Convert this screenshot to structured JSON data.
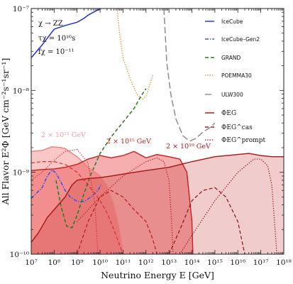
{
  "chart_data": {
    "type": "line",
    "xlabel": "Neutrino Energy E [GeV]",
    "ylabel": "All Flavor E²Φ [GeV cm⁻²s⁻¹sr⁻¹]",
    "x_scale": "log",
    "y_scale": "log",
    "xlim": [
      10000000.0,
      1e+18
    ],
    "ylim": [
      1e-10,
      1e-07
    ],
    "x_tick_labels": [
      "10⁷",
      "10⁸",
      "10⁹",
      "10¹⁰",
      "10¹¹",
      "10¹²",
      "10¹³",
      "10¹⁴",
      "10¹⁵",
      "10¹⁶",
      "10¹⁷",
      "10¹⁸"
    ],
    "y_tick_labels": [
      "10⁻¹⁰",
      "10⁻⁹",
      "10⁻⁸",
      "10⁻⁷"
    ],
    "parameters": [
      "χ → ZZ",
      "τχ = 10¹⁶s",
      "fχ = 10⁻¹¹"
    ],
    "annotations": [
      {
        "text": "2 × 10¹¹ GeV",
        "color": "#f4a0a0"
      },
      {
        "text": "2 × 10¹⁵ GeV",
        "color": "#cc1f1f"
      },
      {
        "text": "2 × 10¹⁹ GeV",
        "color": "#b01818"
      }
    ],
    "legend": [
      {
        "label": "IceCube",
        "color": "#1f2fd6",
        "style": "solid"
      },
      {
        "label": "IceCube–Gen2",
        "color": "#3b4ee8",
        "style": "dashdot"
      },
      {
        "label": "GRAND",
        "color": "#1e7d1e",
        "style": "dashed"
      },
      {
        "label": "POEMMA30",
        "color": "#e6962a",
        "style": "dotted"
      },
      {
        "label": "ULW300",
        "color": "#8c8c8c",
        "style": "longdash"
      },
      {
        "label": "ΦEG",
        "color": "#d42020",
        "style": "solid"
      },
      {
        "label": "ΦEG^cas",
        "color": "#c01818",
        "style": "dashed"
      },
      {
        "label": "ΦEG^prompt",
        "color": "#c01818",
        "style": "dotted"
      }
    ],
    "series": [
      {
        "name": "IceCube",
        "x": [
          10000000.0,
          30000000.0,
          100000000.0,
          300000000.0,
          1000000000.0,
          2000000000.0,
          3000000000.0,
          5000000000.0,
          8000000000.0,
          11000000000.0
        ],
        "y": [
          2.5e-08,
          3.6e-08,
          5.6e-08,
          6.2e-08,
          6.8e-08,
          7.6e-08,
          8.3e-08,
          9e-08,
          9.6e-08,
          1e-07
        ]
      },
      {
        "name": "IceCube–Gen2",
        "x": [
          10000000.0,
          30000000.0,
          50000000.0,
          80000000.0,
          120000000.0,
          200000000.0,
          300000000.0,
          500000000.0,
          1000000000.0,
          2000000000.0,
          4000000000.0,
          8000000000.0,
          11000000000.0
        ],
        "y": [
          4.8e-10,
          6.5e-10,
          9e-10,
          1.07e-09,
          9.8e-10,
          7.5e-10,
          6e-10,
          5e-10,
          4.4e-10,
          4.4e-10,
          5e-10,
          6e-10,
          7e-10
        ]
      },
      {
        "name": "GRAND",
        "x": [
          120000000.0,
          200000000.0,
          350000000.0,
          600000000.0,
          1000000000.0,
          2000000000.0,
          4000000000.0,
          10000000000.0,
          30000000000.0,
          100000000000.0,
          300000000000.0,
          600000000000.0,
          1000000000000.0
        ],
        "y": [
          8e-10,
          3.8e-10,
          2.2e-10,
          2.1e-10,
          3e-10,
          5.5e-10,
          9.5e-10,
          1.7e-09,
          2.7e-09,
          4.1e-09,
          6e-09,
          8.5e-09,
          1.05e-08
        ]
      },
      {
        "name": "POEMMA30",
        "x": [
          55000000000.0,
          70000000000.0,
          100000000000.0,
          200000000000.0,
          400000000000.0,
          700000000000.0,
          1000000000000.0,
          1500000000000.0,
          2000000000000.0
        ],
        "y": [
          1e-07,
          5e-08,
          2.5e-08,
          1.4e-08,
          9e-09,
          7.8e-09,
          8.5e-09,
          1.2e-08,
          1.55e-08
        ]
      },
      {
        "name": "ULW300",
        "x": [
          6000000000000.0,
          8000000000000.0,
          12000000000000.0,
          20000000000000.0,
          40000000000000.0,
          80000000000000.0,
          150000000000000.0,
          300000000000000.0,
          600000000000000.0,
          1000000000000000.0
        ],
        "y": [
          1e-07,
          2.2e-08,
          9e-09,
          4.5e-09,
          2.8e-09,
          2.4e-09,
          2.6e-09,
          3.1e-09,
          3.5e-09,
          4e-09
        ]
      },
      {
        "name": "ΦEG (2 × 10¹¹ GeV)",
        "x": [
          10000000.0,
          30000000.0,
          80000000.0,
          200000000.0,
          300000000.0,
          600000000.0,
          1000000000.0,
          3000000000.0,
          10000000000.0,
          20000000000.0,
          40000000000.0,
          70000000000.0,
          100000000000.0,
          110000000000.0
        ],
        "y": [
          1.8e-09,
          1.85e-09,
          2.05e-09,
          2e-09,
          1.95e-09,
          1.7e-09,
          1.55e-09,
          1.15e-09,
          9e-10,
          7e-10,
          4e-10,
          2e-10,
          1.1e-10,
          1e-10
        ]
      },
      {
        "name": "ΦEG (2 × 10¹⁵ GeV)",
        "x": [
          10000000.0,
          30000000.0,
          100000000.0,
          300000000.0,
          1000000000.0,
          3000000000.0,
          10000000000.0,
          30000000000.0,
          100000000000.0,
          300000000000.0,
          1000000000000.0,
          3000000000000.0,
          10000000000000.0,
          30000000000000.0,
          60000000000000.0,
          100000000000000.0,
          110000000000000.0
        ],
        "y": [
          1.05e-09,
          1.08e-09,
          1.1e-09,
          1.15e-09,
          1.25e-09,
          1.45e-09,
          1.6e-09,
          1.5e-09,
          1.6e-09,
          1.8e-09,
          1.5e-09,
          1.65e-09,
          1.55e-09,
          1.45e-09,
          1e-09,
          2.5e-10,
          1e-10
        ]
      },
      {
        "name": "ΦEG (2 × 10¹⁹ GeV)",
        "x": [
          10000000.0,
          20000000.0,
          50000000.0,
          100000000.0,
          300000000.0,
          600000000.0,
          1000000000.0,
          3000000000.0,
          10000000000.0,
          30000000000.0,
          100000000000.0,
          1000000000000.0,
          10000000000000.0,
          100000000000000.0,
          1000000000000000.0,
          1e+16,
          3e+16,
          1e+17,
          3e+17,
          1e+18
        ],
        "y": [
          1.4e-10,
          1.8e-10,
          2.8e-10,
          3.5e-10,
          5e-10,
          7e-10,
          8e-10,
          8.4e-10,
          8.6e-10,
          9e-10,
          9.5e-10,
          1.05e-09,
          1.15e-09,
          1.35e-09,
          1.55e-09,
          1.65e-09,
          1.7e-09,
          1.6e-09,
          1.55e-09,
          1.55e-09
        ]
      },
      {
        "name": "ΦEG^cas (2 × 10¹¹ GeV)",
        "x": [
          10000000.0,
          30000000.0,
          100000000.0,
          300000000.0,
          1000000000.0,
          3000000000.0,
          10000000000.0,
          20000000000.0,
          40000000000.0,
          70000000000.0,
          100000000000.0
        ],
        "y": [
          1.3e-09,
          1.35e-09,
          1.35e-09,
          1.25e-09,
          1e-09,
          7e-10,
          4.5e-10,
          3.2e-10,
          2e-10,
          1.3e-10,
          1e-10
        ]
      },
      {
        "name": "ΦEG^cas (2 × 10¹⁵ GeV)",
        "x": [
          1000000000.0,
          3000000000.0,
          10000000000.0,
          30000000000.0,
          100000000000.0,
          300000000000.0,
          1000000000000.0,
          2000000000000.0,
          3000000000000.0
        ],
        "y": [
          1e-10,
          2.5e-10,
          5e-10,
          6e-10,
          5e-10,
          3.5e-10,
          2.5e-10,
          1.5e-10,
          1e-10
        ]
      },
      {
        "name": "ΦEG^cas (2 × 10¹⁹ GeV)",
        "x": [
          10000000000000.0,
          30000000000000.0,
          100000000000000.0,
          300000000000000.0,
          1000000000000000.0,
          3000000000000000.0,
          1e+16,
          2e+16
        ],
        "y": [
          1e-10,
          2e-10,
          4.5e-10,
          6e-10,
          6.5e-10,
          5e-10,
          2.5e-10,
          1e-10
        ]
      },
      {
        "name": "ΦEG^prompt (2 × 10¹¹ GeV)",
        "x": [
          10000000.0,
          30000000.0,
          100000000.0,
          300000000.0,
          1000000000.0,
          3000000000.0,
          6000000000.0,
          8000000000.0
        ],
        "y": [
          8e-10,
          1e-09,
          1.4e-09,
          1.8e-09,
          1.9e-09,
          1.3e-09,
          4e-10,
          1e-10
        ]
      },
      {
        "name": "ΦEG^prompt (2 × 10¹⁵ GeV)",
        "x": [
          1000000000.0,
          10000000000.0,
          100000000000.0,
          1000000000000.0,
          3000000000000.0,
          6000000000000.0,
          10000000000000.0,
          13000000000000.0,
          15000000000000.0
        ],
        "y": [
          2.5e-10,
          5e-10,
          9e-10,
          1.35e-09,
          1.5e-09,
          1.35e-09,
          8e-10,
          2.5e-10,
          1e-10
        ]
      },
      {
        "name": "ΦEG^prompt (2 × 10¹⁹ GeV)",
        "x": [
          30000000000000.0,
          100000000000000.0,
          1000000000000000.0,
          1e+16,
          5e+16,
          1e+17,
          2e+17,
          3e+17,
          5e+17
        ],
        "y": [
          1e-10,
          1.7e-10,
          4.5e-10,
          1e-09,
          1.45e-09,
          1.45e-09,
          1.2e-09,
          7e-10,
          1e-10
        ]
      }
    ],
    "fills": [
      {
        "color": "#f8b4b4",
        "opacity": 0.75,
        "x": [
          10000000.0,
          30000000.0,
          80000000.0,
          200000000.0,
          300000000.0,
          600000000.0,
          1000000000.0,
          3000000000.0,
          10000000000.0,
          20000000000.0,
          40000000000.0,
          70000000000.0,
          100000000000.0,
          110000000000.0
        ],
        "y": [
          1.8e-09,
          1.85e-09,
          2.05e-09,
          2e-09,
          1.95e-09,
          1.7e-09,
          1.55e-09,
          1.15e-09,
          9e-10,
          7e-10,
          4e-10,
          2e-10,
          1.1e-10,
          1e-10
        ]
      },
      {
        "color": "#e84a4a",
        "opacity": 0.45,
        "x": [
          10000000.0,
          30000000.0,
          100000000.0,
          300000000.0,
          1000000000.0,
          3000000000.0,
          10000000000.0,
          30000000000.0,
          100000000000.0,
          300000000000.0,
          1000000000000.0,
          3000000000000.0,
          10000000000000.0,
          30000000000000.0,
          60000000000000.0,
          100000000000000.0,
          110000000000000.0
        ],
        "y": [
          1.05e-09,
          1.08e-09,
          1.1e-09,
          1.15e-09,
          1.25e-09,
          1.45e-09,
          1.6e-09,
          1.5e-09,
          1.6e-09,
          1.8e-09,
          1.5e-09,
          1.65e-09,
          1.55e-09,
          1.45e-09,
          1e-09,
          2.5e-10,
          1e-10
        ]
      },
      {
        "color": "#c83232",
        "opacity": 0.25,
        "x": [
          10000000.0,
          20000000.0,
          50000000.0,
          100000000.0,
          300000000.0,
          600000000.0,
          1000000000.0,
          3000000000.0,
          10000000000.0,
          30000000000.0,
          100000000000.0,
          1000000000000.0,
          10000000000000.0,
          100000000000000.0,
          1000000000000000.0,
          1e+16,
          3e+16,
          1e+17,
          3e+17,
          1e+18
        ],
        "y": [
          1.4e-10,
          1.8e-10,
          2.8e-10,
          3.5e-10,
          5e-10,
          7e-10,
          8e-10,
          8.4e-10,
          8.6e-10,
          9e-10,
          9.5e-10,
          1.05e-09,
          1.15e-09,
          1.35e-09,
          1.55e-09,
          1.65e-09,
          1.7e-09,
          1.6e-09,
          1.55e-09,
          1.55e-09
        ]
      }
    ]
  }
}
